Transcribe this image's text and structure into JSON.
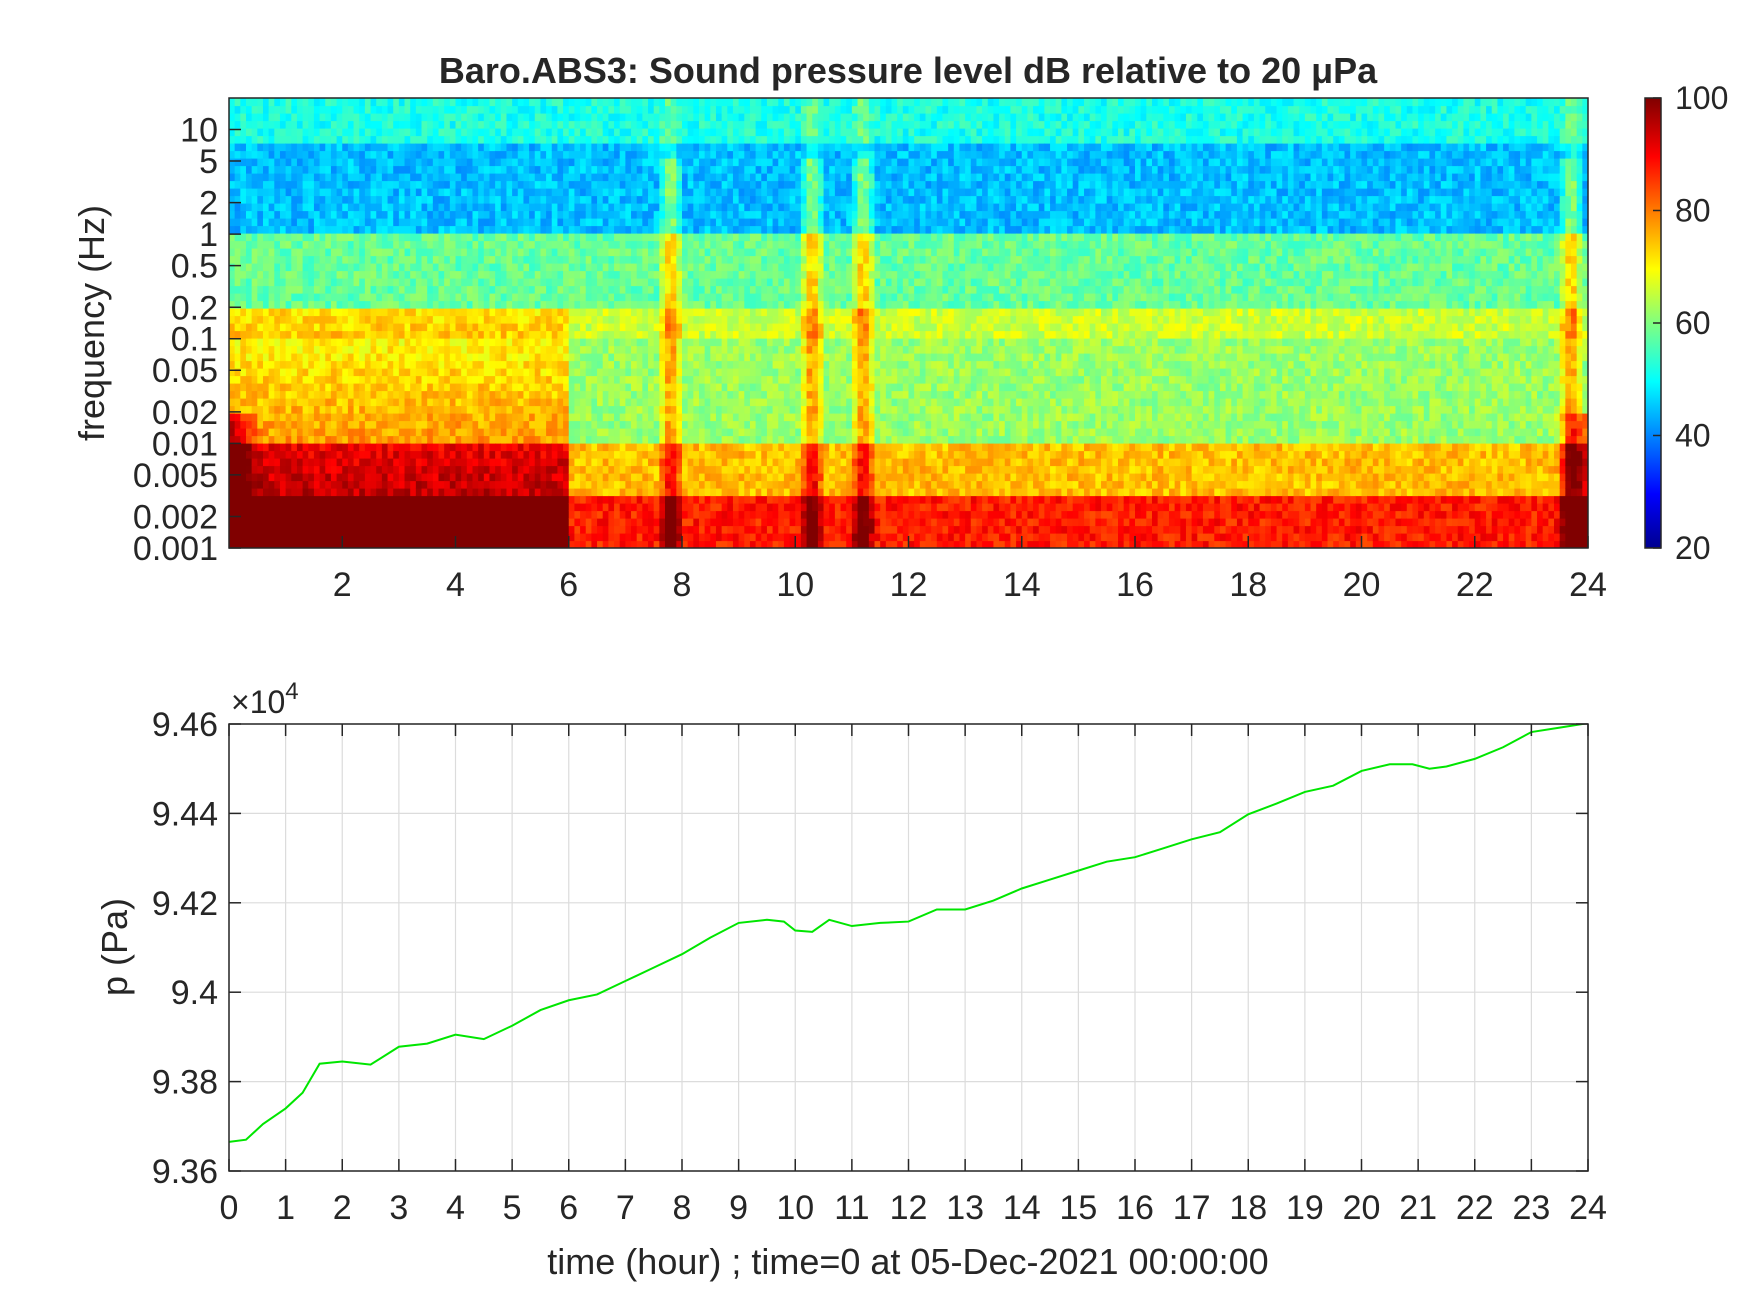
{
  "chart_data": [
    {
      "type": "heatmap",
      "title": "Baro.ABS3: Sound pressure level dB relative to 20 μPa",
      "xlabel": "",
      "ylabel": "frequency (Hz)",
      "xlim": [
        0,
        24
      ],
      "x_ticks": [
        "2",
        "4",
        "6",
        "8",
        "10",
        "12",
        "14",
        "16",
        "18",
        "20",
        "22",
        "24"
      ],
      "y_scale": "log",
      "ylim": [
        0.001,
        20
      ],
      "y_ticks": [
        "10",
        "5",
        "2",
        "1",
        "0.5",
        "0.2",
        "0.1",
        "0.05",
        "0.02",
        "0.01",
        "0.005",
        "0.002",
        "0.001"
      ],
      "colormap": "jet",
      "colorbar": {
        "range": [
          20,
          100
        ],
        "ticks": [
          "100",
          "80",
          "60",
          "40",
          "20"
        ]
      },
      "bands": [
        {
          "f_range": [
            0.001,
            0.003
          ],
          "level_db": 88
        },
        {
          "f_range": [
            0.003,
            0.01
          ],
          "level_db": 75
        },
        {
          "f_range": [
            0.01,
            0.1
          ],
          "level_db": 62
        },
        {
          "f_range": [
            0.1,
            0.2
          ],
          "level_db": 66
        },
        {
          "f_range": [
            0.2,
            1
          ],
          "level_db": 58
        },
        {
          "f_range": [
            1,
            8
          ],
          "level_db": 45
        },
        {
          "f_range": [
            8,
            20
          ],
          "level_db": 52
        }
      ],
      "high_activity_hours": [
        0,
        1,
        2,
        3,
        4,
        5,
        6
      ],
      "transient_hours": [
        7.8,
        10.3,
        11.2,
        23.7
      ]
    },
    {
      "type": "line",
      "title": "",
      "xlabel": "time (hour) ; time=0 at 05-Dec-2021 00:00:00",
      "ylabel": "p (Pa)",
      "y_multiplier": "×10",
      "y_multiplier_exp": "4",
      "xlim": [
        0,
        24
      ],
      "ylim": [
        9.36,
        9.46
      ],
      "x_ticks": [
        "0",
        "1",
        "2",
        "3",
        "4",
        "5",
        "6",
        "7",
        "8",
        "9",
        "10",
        "11",
        "12",
        "13",
        "14",
        "15",
        "16",
        "17",
        "18",
        "19",
        "20",
        "21",
        "22",
        "23",
        "24"
      ],
      "y_ticks": [
        "9.36",
        "9.38",
        "9.4",
        "9.42",
        "9.44",
        "9.46"
      ],
      "grid": true,
      "line_color": "#00e600",
      "series": [
        {
          "x": [
            0,
            0.3,
            0.6,
            1.0,
            1.3,
            1.6,
            2.0,
            2.5,
            3.0,
            3.5,
            4.0,
            4.5,
            5.0,
            5.5,
            6.0,
            6.5,
            7.0,
            7.5,
            8.0,
            8.5,
            9.0,
            9.5,
            9.8,
            10.0,
            10.3,
            10.6,
            11.0,
            11.5,
            12.0,
            12.5,
            13.0,
            13.5,
            14.0,
            14.5,
            15.0,
            15.5,
            16.0,
            16.5,
            17.0,
            17.5,
            18.0,
            18.5,
            19.0,
            19.5,
            20.0,
            20.5,
            20.9,
            21.2,
            21.5,
            22.0,
            22.5,
            23.0,
            23.5,
            24.0
          ],
          "y": [
            9.3665,
            9.367,
            9.3705,
            9.374,
            9.3775,
            9.384,
            9.3845,
            9.3838,
            9.3878,
            9.3885,
            9.3905,
            9.3895,
            9.3925,
            9.396,
            9.3982,
            9.3995,
            9.4025,
            9.4055,
            9.4085,
            9.4122,
            9.4155,
            9.4162,
            9.4158,
            9.4138,
            9.4135,
            9.4162,
            9.4148,
            9.4155,
            9.4158,
            9.4185,
            9.4185,
            9.4205,
            9.4232,
            9.4252,
            9.4272,
            9.4292,
            9.4302,
            9.4322,
            9.4342,
            9.4358,
            9.4398,
            9.4422,
            9.4448,
            9.4462,
            9.4495,
            9.451,
            9.451,
            9.45,
            9.4505,
            9.4522,
            9.4548,
            9.4582,
            9.4592,
            9.4602
          ]
        }
      ]
    }
  ]
}
